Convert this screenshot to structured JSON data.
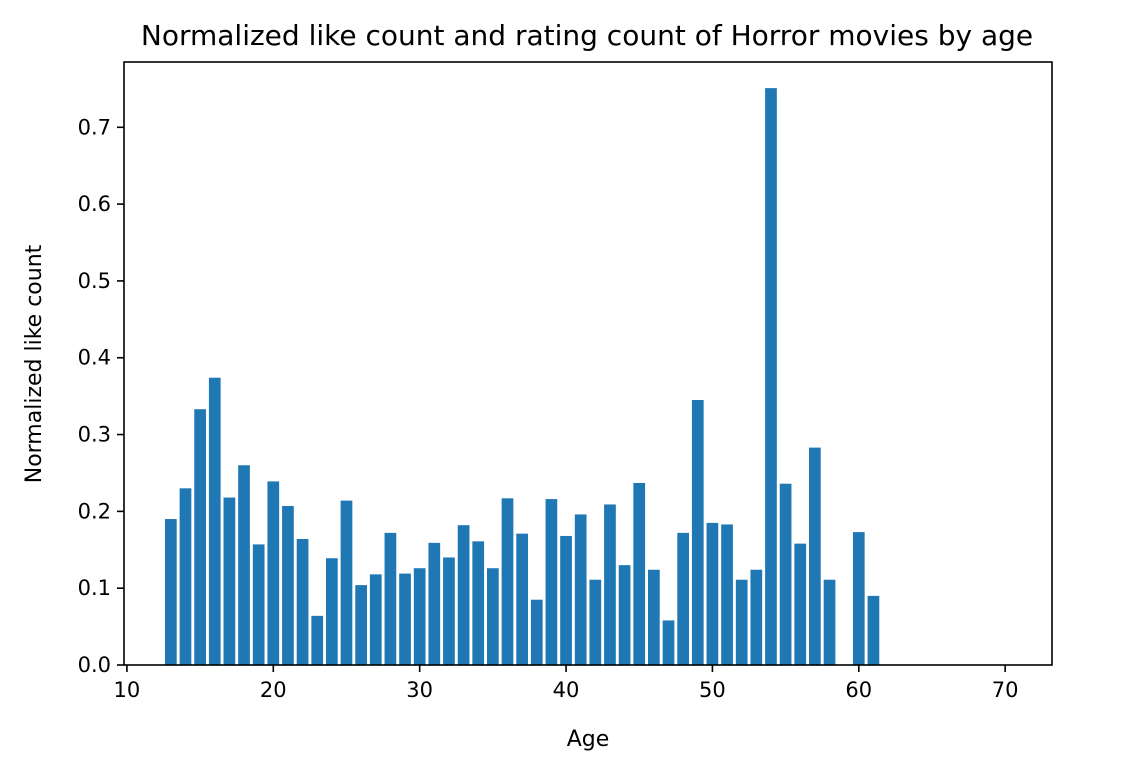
{
  "chart_data": {
    "type": "bar",
    "title": "Normalized like count and rating count of Horror movies by age",
    "xlabel": "Age",
    "ylabel": "Normalized like count",
    "xlim": [
      9.8,
      73.2
    ],
    "ylim": [
      0,
      0.785
    ],
    "x_ticks": [
      10,
      20,
      30,
      40,
      50,
      60,
      70
    ],
    "y_ticks": [
      0.0,
      0.1,
      0.2,
      0.3,
      0.4,
      0.5,
      0.6,
      0.7
    ],
    "y_tick_labels": [
      "0.0",
      "0.1",
      "0.2",
      "0.3",
      "0.4",
      "0.5",
      "0.6",
      "0.7"
    ],
    "bar_color": "#1f77b4",
    "grid": false,
    "x": [
      13,
      14,
      15,
      16,
      17,
      18,
      19,
      20,
      21,
      22,
      23,
      24,
      25,
      26,
      27,
      28,
      29,
      30,
      31,
      32,
      33,
      34,
      35,
      36,
      37,
      38,
      39,
      40,
      41,
      42,
      43,
      44,
      45,
      46,
      47,
      48,
      49,
      50,
      51,
      52,
      53,
      54,
      55,
      56,
      57,
      58,
      60,
      61
    ],
    "values": [
      0.19,
      0.23,
      0.333,
      0.374,
      0.218,
      0.26,
      0.157,
      0.239,
      0.207,
      0.164,
      0.064,
      0.139,
      0.214,
      0.104,
      0.118,
      0.172,
      0.119,
      0.126,
      0.159,
      0.14,
      0.182,
      0.161,
      0.126,
      0.217,
      0.171,
      0.085,
      0.216,
      0.168,
      0.196,
      0.111,
      0.209,
      0.13,
      0.237,
      0.124,
      0.058,
      0.172,
      0.345,
      0.185,
      0.183,
      0.111,
      0.124,
      0.751,
      0.236,
      0.158,
      0.283,
      0.111,
      0.173,
      0.09
    ]
  }
}
